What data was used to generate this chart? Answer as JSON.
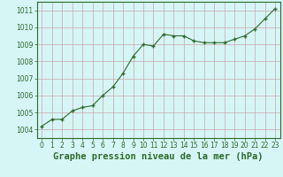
{
  "x": [
    0,
    1,
    2,
    3,
    4,
    5,
    6,
    7,
    8,
    9,
    10,
    11,
    12,
    13,
    14,
    15,
    16,
    17,
    18,
    19,
    20,
    21,
    22,
    23
  ],
  "y": [
    1004.2,
    1004.6,
    1004.6,
    1005.1,
    1005.3,
    1005.4,
    1006.0,
    1006.5,
    1007.3,
    1008.3,
    1009.0,
    1008.9,
    1009.6,
    1009.5,
    1009.5,
    1009.2,
    1009.1,
    1009.1,
    1009.1,
    1009.3,
    1009.5,
    1009.9,
    1010.5,
    1011.1
  ],
  "line_color": "#2d6a2d",
  "marker": "+",
  "marker_color": "#2d6a2d",
  "bg_color": "#d6f5f5",
  "grid_color": "#c8a8a8",
  "xlabel": "Graphe pression niveau de la mer (hPa)",
  "xlabel_color": "#2d6a2d",
  "xlabel_fontsize": 7.5,
  "ylim": [
    1003.5,
    1011.5
  ],
  "yticks": [
    1004,
    1005,
    1006,
    1007,
    1008,
    1009,
    1010,
    1011
  ],
  "xticks": [
    0,
    1,
    2,
    3,
    4,
    5,
    6,
    7,
    8,
    9,
    10,
    11,
    12,
    13,
    14,
    15,
    16,
    17,
    18,
    19,
    20,
    21,
    22,
    23
  ],
  "tick_color": "#2d6a2d",
  "tick_fontsize": 5.5,
  "axis_color": "#2d6a2d",
  "xlim": [
    -0.5,
    23.5
  ]
}
